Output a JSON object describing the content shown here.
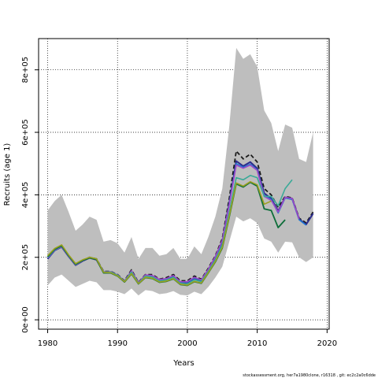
{
  "chart_data": {
    "type": "line",
    "xlabel": "Years",
    "ylabel": "Recruits (age 1)",
    "xlim": [
      1978.7,
      2020.3
    ],
    "ylim": [
      -30000,
      900000
    ],
    "x_ticks": [
      1980,
      1990,
      2000,
      2010,
      2020
    ],
    "x_tick_labels": [
      "1980",
      "1990",
      "2000",
      "2010",
      "2020"
    ],
    "y_ticks": [
      0,
      200000,
      400000,
      600000,
      800000
    ],
    "y_tick_labels": [
      "0e+00",
      "2e+05",
      "4e+05",
      "6e+05",
      "8e+05"
    ],
    "grid": true,
    "footer": "stockassessment.org, her7a1980clone, r16318 , git: ec2c2a0c6dde",
    "band": {
      "color": "#bebebe",
      "x": [
        1980,
        1981,
        1982,
        1983,
        1984,
        1985,
        1986,
        1987,
        1988,
        1989,
        1990,
        1991,
        1992,
        1993,
        1994,
        1995,
        1996,
        1997,
        1998,
        1999,
        2000,
        2001,
        2002,
        2003,
        2004,
        2005,
        2006,
        2007,
        2008,
        2009,
        2010,
        2011,
        2012,
        2013,
        2014,
        2015,
        2016,
        2017,
        2018
      ],
      "upper": [
        350000,
        380000,
        400000,
        345000,
        285000,
        305000,
        330000,
        320000,
        250000,
        255000,
        245000,
        215000,
        265000,
        195000,
        230000,
        230000,
        205000,
        210000,
        230000,
        195000,
        195000,
        235000,
        210000,
        265000,
        330000,
        420000,
        620000,
        870000,
        835000,
        850000,
        810000,
        670000,
        630000,
        540000,
        625000,
        615000,
        515000,
        505000,
        600000
      ],
      "lower": [
        110000,
        135000,
        145000,
        125000,
        105000,
        115000,
        125000,
        120000,
        95000,
        95000,
        90000,
        82000,
        100000,
        78000,
        95000,
        92000,
        82000,
        85000,
        92000,
        80000,
        78000,
        90000,
        82000,
        105000,
        135000,
        170000,
        250000,
        330000,
        315000,
        325000,
        310000,
        260000,
        250000,
        215000,
        250000,
        248000,
        200000,
        185000,
        200000
      ]
    },
    "series": [
      {
        "color": "#1a1a1a",
        "width": 1.8,
        "dash": "5,3",
        "x": [
          1980,
          1981,
          1982,
          1983,
          1984,
          1985,
          1986,
          1987,
          1988,
          1989,
          1990,
          1991,
          1992,
          1993,
          1994,
          1995,
          1996,
          1997,
          1998,
          1999,
          2000,
          2001,
          2002,
          2003,
          2004,
          2005,
          2006,
          2007,
          2008,
          2009,
          2010,
          2011,
          2012,
          2013,
          2014,
          2015,
          2016,
          2017,
          2018
        ],
        "values": [
          195000,
          225000,
          235000,
          205000,
          175000,
          190000,
          200000,
          195000,
          155000,
          155000,
          145000,
          125000,
          160000,
          120000,
          145000,
          145000,
          130000,
          135000,
          145000,
          125000,
          125000,
          140000,
          130000,
          165000,
          205000,
          260000,
          390000,
          540000,
          515000,
          530000,
          505000,
          420000,
          400000,
          360000,
          395000,
          390000,
          325000,
          310000,
          345000
        ]
      },
      {
        "color": "#2b2b8c",
        "width": 2.0,
        "dash": "",
        "x": [
          1980,
          1981,
          1982,
          1983,
          1984,
          1985,
          1986,
          1987,
          1988,
          1989,
          1990,
          1991,
          1992,
          1993,
          1994,
          1995,
          1996,
          1997,
          1998,
          1999,
          2000,
          2001,
          2002,
          2003,
          2004,
          2005,
          2006,
          2007,
          2008,
          2009,
          2010,
          2011,
          2012,
          2013,
          2014,
          2015,
          2016,
          2017,
          2018
        ],
        "values": [
          195000,
          222000,
          233000,
          203000,
          175000,
          188000,
          198000,
          192000,
          152000,
          152000,
          142000,
          122000,
          155000,
          117000,
          142000,
          140000,
          127000,
          130000,
          140000,
          120000,
          120000,
          133000,
          126000,
          160000,
          200000,
          252000,
          375000,
          508000,
          492000,
          505000,
          485000,
          405000,
          388000,
          348000,
          392000,
          388000,
          322000,
          305000,
          340000
        ]
      },
      {
        "color": "#1f78d0",
        "width": 1.6,
        "dash": "",
        "x": [
          1980,
          1981,
          1982,
          1983,
          1984,
          1985,
          1986,
          1987,
          1988,
          1989,
          1990,
          1991,
          1992,
          1993,
          1994,
          1995,
          1996,
          1997,
          1998,
          1999,
          2000,
          2001,
          2002,
          2003,
          2004,
          2005,
          2006,
          2007,
          2008,
          2009,
          2010,
          2011,
          2012,
          2013,
          2014,
          2015,
          2016,
          2017
        ],
        "values": [
          197000,
          223000,
          234000,
          204000,
          176000,
          189000,
          199000,
          193000,
          153000,
          153000,
          143000,
          123000,
          156000,
          118000,
          143000,
          141000,
          128000,
          131000,
          141000,
          121000,
          121000,
          134000,
          127000,
          161000,
          201000,
          253000,
          372000,
          500000,
          488000,
          498000,
          480000,
          398000,
          385000,
          342000,
          390000,
          385000,
          320000,
          303000
        ]
      },
      {
        "color": "#a048c8",
        "width": 1.6,
        "dash": "",
        "x": [
          1980,
          1981,
          1982,
          1983,
          1984,
          1985,
          1986,
          1987,
          1988,
          1989,
          1990,
          1991,
          1992,
          1993,
          1994,
          1995,
          1996,
          1997,
          1998,
          1999,
          2000,
          2001,
          2002,
          2003,
          2004,
          2005,
          2006,
          2007,
          2008,
          2009,
          2010,
          2011,
          2012,
          2013,
          2014,
          2015,
          2016
        ],
        "values": [
          198000,
          224000,
          234000,
          204000,
          176000,
          189000,
          200000,
          194000,
          154000,
          154000,
          144000,
          124000,
          157000,
          119000,
          144000,
          142000,
          129000,
          132000,
          142000,
          122000,
          122000,
          136000,
          128000,
          162000,
          202000,
          255000,
          370000,
          495000,
          485000,
          495000,
          478000,
          395000,
          382000,
          345000,
          392000,
          388000,
          322000
        ]
      },
      {
        "color": "#3aaa98",
        "width": 1.6,
        "dash": "",
        "x": [
          1980,
          1981,
          1982,
          1983,
          1984,
          1985,
          1986,
          1987,
          1988,
          1989,
          1990,
          1991,
          1992,
          1993,
          1994,
          1995,
          1996,
          1997,
          1998,
          1999,
          2000,
          2001,
          2002,
          2003,
          2004,
          2005,
          2006,
          2007,
          2008,
          2009,
          2010,
          2011,
          2012,
          2013,
          2014,
          2015
        ],
        "values": [
          200000,
          225000,
          236000,
          205000,
          177000,
          190000,
          200000,
          195000,
          153000,
          153000,
          143000,
          123000,
          153000,
          117000,
          140000,
          137000,
          124000,
          127000,
          136000,
          117000,
          115000,
          128000,
          122000,
          155000,
          192000,
          240000,
          345000,
          455000,
          448000,
          462000,
          455000,
          395000,
          395000,
          365000,
          420000,
          448000
        ]
      },
      {
        "color": "#0e6e3a",
        "width": 1.8,
        "dash": "",
        "x": [
          1980,
          1981,
          1982,
          1983,
          1984,
          1985,
          1986,
          1987,
          1988,
          1989,
          1990,
          1991,
          1992,
          1993,
          1994,
          1995,
          1996,
          1997,
          1998,
          1999,
          2000,
          2001,
          2002,
          2003,
          2004,
          2005,
          2006,
          2007,
          2008,
          2009,
          2010,
          2011,
          2012,
          2013,
          2014
        ],
        "values": [
          202000,
          226000,
          237000,
          206000,
          178000,
          190000,
          198000,
          193000,
          150000,
          150000,
          140000,
          121000,
          147000,
          115000,
          135000,
          132000,
          120000,
          123000,
          131000,
          113000,
          110000,
          122000,
          117000,
          150000,
          185000,
          230000,
          330000,
          435000,
          425000,
          440000,
          428000,
          355000,
          350000,
          295000,
          320000
        ]
      },
      {
        "color": "#9aa020",
        "width": 1.6,
        "dash": "",
        "x": [
          1980,
          1981,
          1982,
          1983,
          1984,
          1985,
          1986,
          1987,
          1988,
          1989,
          1990,
          1991,
          1992,
          1993,
          1994,
          1995,
          1996,
          1997,
          1998,
          1999,
          2000,
          2001,
          2002,
          2003,
          2004,
          2005,
          2006,
          2007,
          2008,
          2009,
          2010,
          2011,
          2012
        ],
        "values": [
          205000,
          228000,
          240000,
          208000,
          180000,
          192000,
          200000,
          195000,
          152000,
          151000,
          141000,
          122000,
          148000,
          116000,
          136000,
          133000,
          121000,
          124000,
          132000,
          114000,
          111000,
          123000,
          118000,
          151000,
          187000,
          232000,
          333000,
          438000,
          428000,
          442000,
          432000,
          370000,
          380000
        ]
      }
    ]
  }
}
